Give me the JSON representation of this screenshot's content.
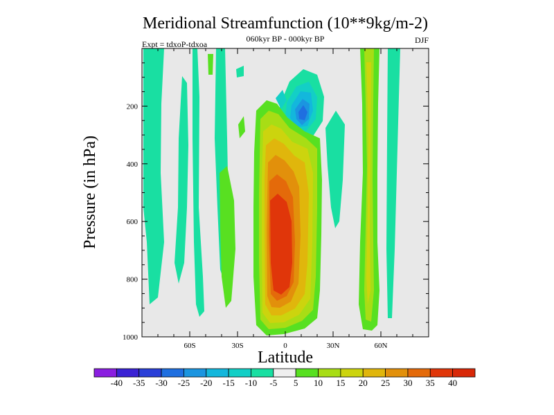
{
  "chart_data": {
    "type": "heatmap",
    "title": "Meridional Streamfunction (10**9kg/m-2)",
    "subtitle": "060kyr BP - 000kyr BP",
    "left_label": "Expt = tdxoP-tdxoa",
    "right_label": "DJF",
    "xlabel": "Latitude",
    "ylabel": "Pressure (in hPa)",
    "xlim": [
      -90,
      90
    ],
    "ylim": [
      1000,
      0
    ],
    "x_ticks": [
      {
        "value": -60,
        "label": "60S"
      },
      {
        "value": -30,
        "label": "30S"
      },
      {
        "value": 0,
        "label": "0"
      },
      {
        "value": 30,
        "label": "30N"
      },
      {
        "value": 60,
        "label": "60N"
      }
    ],
    "y_ticks": [
      {
        "value": 200,
        "label": "200"
      },
      {
        "value": 400,
        "label": "400"
      },
      {
        "value": 600,
        "label": "600"
      },
      {
        "value": 800,
        "label": "800"
      },
      {
        "value": 1000,
        "label": "1000"
      }
    ],
    "background_color": "#e8e8e8",
    "colorbar": {
      "labels": [
        "-40",
        "-35",
        "-30",
        "-25",
        "-20",
        "-15",
        "-10",
        "-5",
        "5",
        "10",
        "15",
        "20",
        "25",
        "30",
        "35",
        "40"
      ],
      "colors": [
        "#8a1ee0",
        "#3a22d4",
        "#2a3fd8",
        "#1f6fe0",
        "#1b95e0",
        "#13b7dc",
        "#13cfc6",
        "#19dfa2",
        "#efefef",
        "#58e021",
        "#a8dd15",
        "#ccd40e",
        "#e0b60c",
        "#e2900b",
        "#e46a0a",
        "#e0360a",
        "#d82808"
      ]
    },
    "features": [
      {
        "name": "tropical positive cell",
        "lat_range": [
          -10,
          20
        ],
        "pressure_range": [
          280,
          1000
        ],
        "peak_value": 40
      },
      {
        "name": "upper tropospheric negative cell",
        "lat_range": [
          -5,
          20
        ],
        "pressure_range": [
          100,
          290
        ],
        "peak_value": -25
      },
      {
        "name": "northern midlatitude positive band",
        "lat_range": [
          48,
          60
        ],
        "pressure_range": [
          0,
          1000
        ],
        "peak_value": 20
      },
      {
        "name": "southern high-latitude negative bands",
        "lat_range": [
          -90,
          -35
        ],
        "pressure_range": [
          0,
          950
        ],
        "peak_value": -10
      }
    ]
  }
}
